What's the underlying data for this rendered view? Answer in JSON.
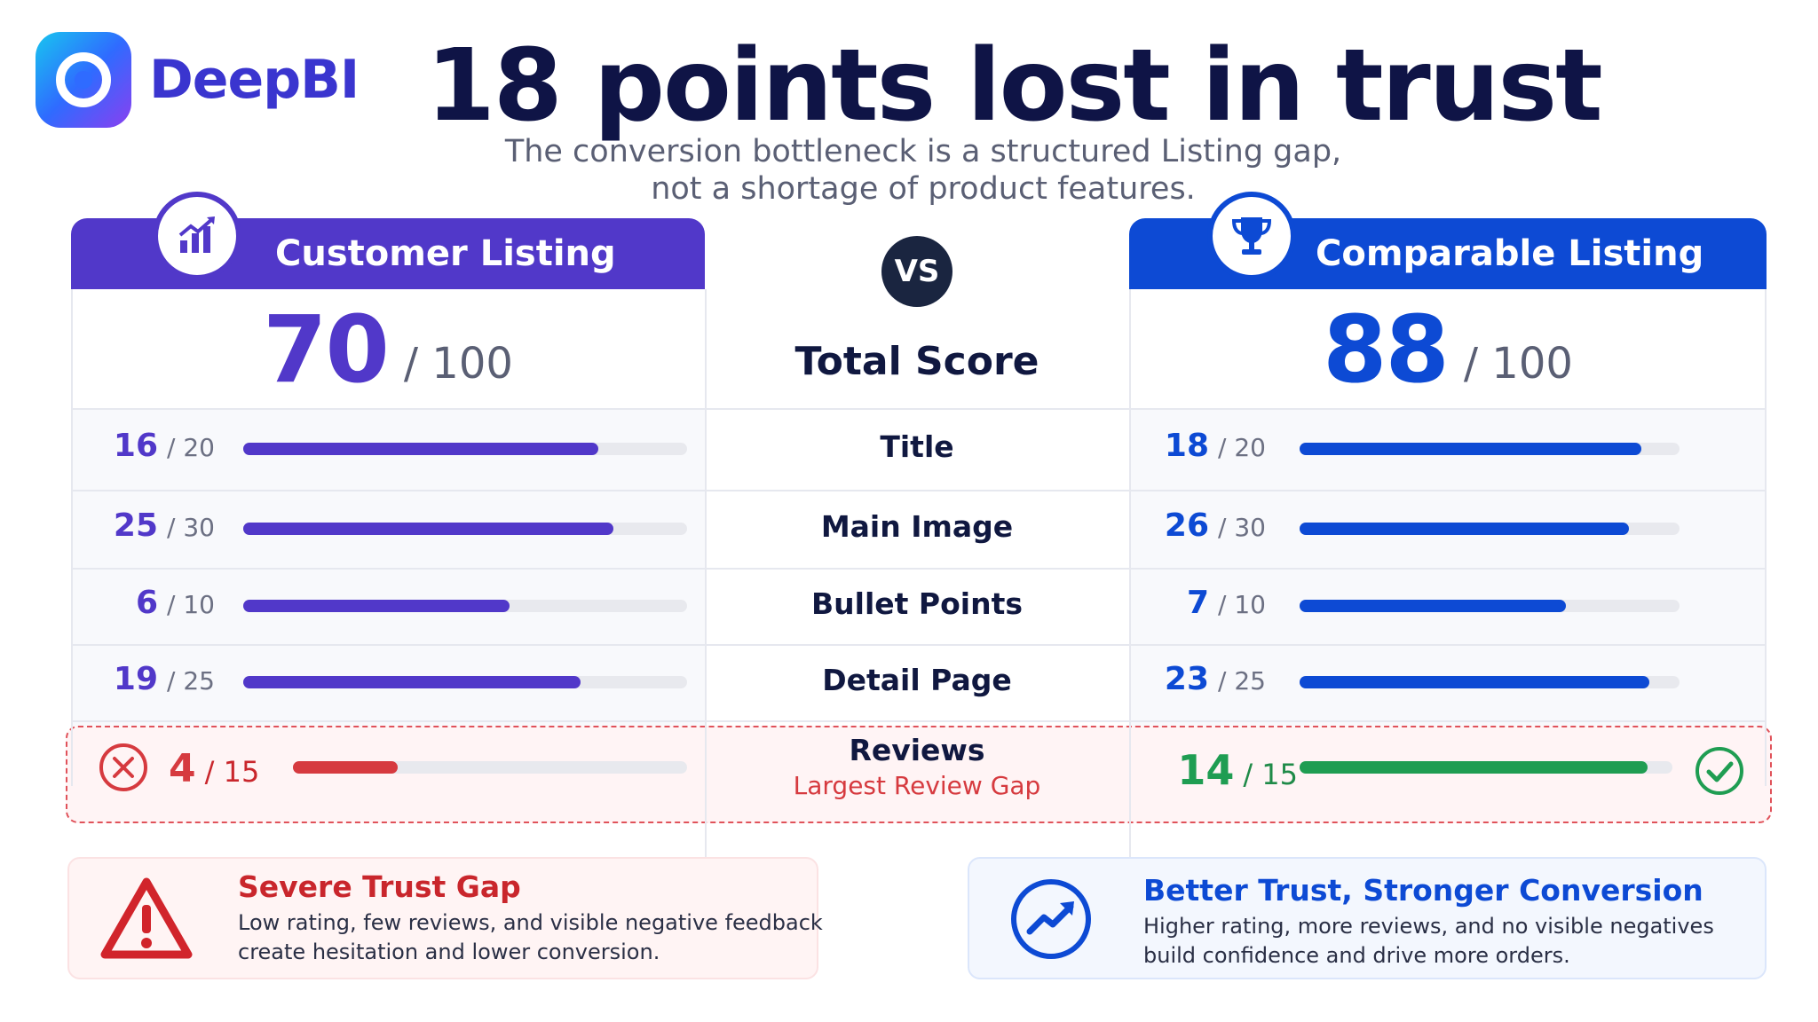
{
  "brand": {
    "name": "DeepBI"
  },
  "header": {
    "title": "18 points lost in trust",
    "subtitle_line1": "The conversion bottleneck is a structured Listing gap,",
    "subtitle_line2": "not a shortage of product features."
  },
  "columns": {
    "left_title": "Customer Listing",
    "right_title": "Comparable Listing",
    "vs_label": "VS"
  },
  "colors": {
    "customer": "#5138c9",
    "comparable": "#0d4ad4",
    "bad": "#d63a3f",
    "good": "#1f9d52"
  },
  "chart_data": {
    "type": "bar",
    "title": "18 points lost in trust",
    "total": {
      "label": "Total Score",
      "customer": 70,
      "comparable": 88,
      "max": 100,
      "customer_max_text": "/ 100",
      "comparable_max_text": "/ 100"
    },
    "categories": [
      "Title",
      "Main Image",
      "Bullet Points",
      "Detail Page",
      "Reviews"
    ],
    "max": [
      20,
      30,
      10,
      25,
      15
    ],
    "max_text": [
      "/ 20",
      "/ 30",
      "/ 10",
      "/ 25",
      "/ 15"
    ],
    "series": [
      {
        "name": "Customer Listing",
        "values": [
          16,
          25,
          6,
          19,
          4
        ]
      },
      {
        "name": "Comparable Listing",
        "values": [
          18,
          26,
          7,
          23,
          14
        ]
      }
    ],
    "annotations": {
      "reviews_note": "Largest Review Gap"
    }
  },
  "cards": {
    "left": {
      "title": "Severe Trust Gap",
      "line1": "Low rating, few reviews, and visible negative feedback",
      "line2": "create hesitation and lower conversion."
    },
    "right": {
      "title": "Better Trust, Stronger Conversion",
      "line1": "Higher rating, more reviews, and no visible negatives",
      "line2": "build confidence and drive more orders."
    }
  }
}
